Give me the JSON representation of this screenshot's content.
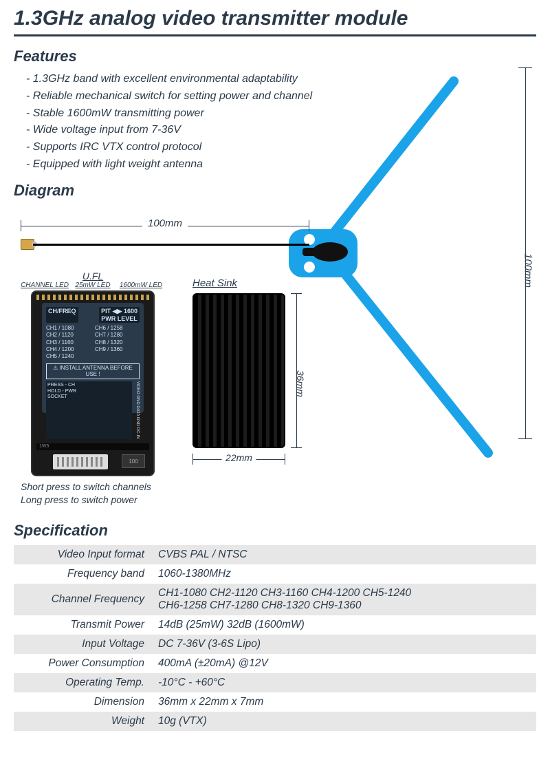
{
  "title": "1.3GHz analog video transmitter module",
  "sections": {
    "features": "Features",
    "diagram": "Diagram",
    "spec": "Specification"
  },
  "features": [
    "1.3GHz band with excellent environmental adaptability",
    "Reliable mechanical switch for setting power and channel",
    "Stable 1600mW transmitting power",
    "Wide voltage input from 7-36V",
    "Supports IRC VTX control protocol",
    "Equipped with light weight antenna"
  ],
  "diagram": {
    "cable_length": "100mm",
    "antenna_height": "100mm",
    "heatsink": {
      "label": "Heat Sink",
      "width": "22mm",
      "height": "36mm"
    },
    "ufl_label": "U.FL",
    "led_labels": {
      "ch": "CHANNEL LED",
      "p25": "25mW LED",
      "p1600": "1600mW LED"
    },
    "pcb": {
      "hdr_left": "CH/FREQ",
      "hdr_right": "PIT ◀▶ 1600\nPWR LEVEL",
      "ch_left": "CH1 / 1080\nCH2 / 1120\nCH3 / 1160\nCH4 / 1200\nCH5 / 1240",
      "ch_right": "CH6 / 1258\nCH7 / 1280\nCH8 / 1320\nCH9 / 1360",
      "warn": "INSTALL ANTENNA BEFORE USE !",
      "press": "PRESS - CH\nHOLD - PWR\nSOCKET",
      "pins": "VIDEO GND DATA GND DC-IN",
      "chip": "100",
      "mid": "1W5"
    },
    "captions": {
      "short": "Short press to switch channels",
      "long": "Long press to switch power"
    },
    "colors": {
      "accent": "#2b3a4a",
      "antenna": "#1aa3e8",
      "heatsink": "#0a0a0a"
    }
  },
  "spec": [
    {
      "k": "Video Input format",
      "v": "CVBS  PAL / NTSC",
      "shade": true
    },
    {
      "k": "Frequency band",
      "v": "1060-1380MHz",
      "shade": false
    },
    {
      "k": "Channel Frequency",
      "v": "CH1-1080   CH2-1120   CH3-1160   CH4-1200   CH5-1240\nCH6-1258   CH7-1280   CH8-1320   CH9-1360",
      "shade": true
    },
    {
      "k": "Transmit Power",
      "v": "14dB (25mW)    32dB (1600mW)",
      "shade": false
    },
    {
      "k": "Input Voltage",
      "v": "DC 7-36V  (3-6S Lipo)",
      "shade": true
    },
    {
      "k": "Power Consumption",
      "v": "400mA (±20mA)   @12V",
      "shade": false
    },
    {
      "k": "Operating Temp.",
      "v": "-10°C - +60°C",
      "shade": true
    },
    {
      "k": "Dimension",
      "v": "36mm x 22mm x 7mm",
      "shade": false
    },
    {
      "k": "Weight",
      "v": "10g  (VTX)",
      "shade": true
    }
  ]
}
